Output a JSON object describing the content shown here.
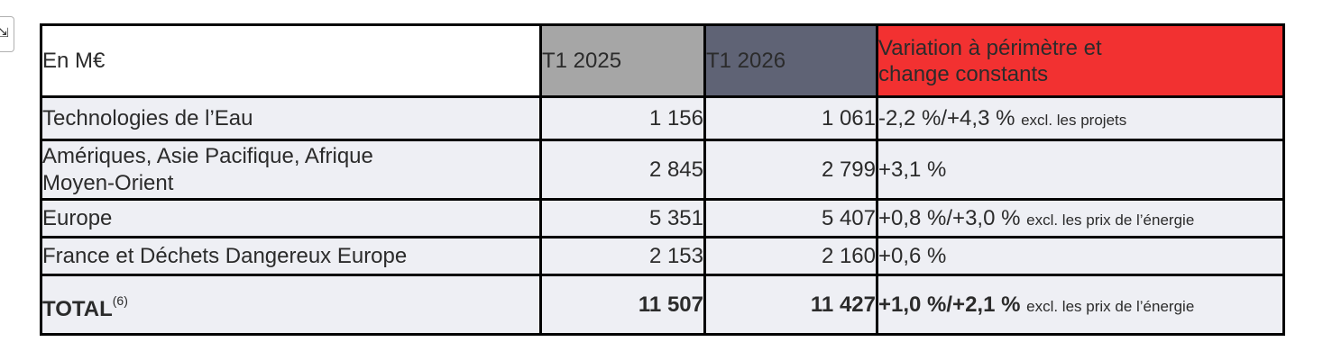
{
  "header": {
    "label": "En M€",
    "col_2025": "T1 2025",
    "col_2026": "T1 2026",
    "col_variation_line1": "Variation à périmètre et",
    "col_variation_line2": "change constants"
  },
  "rows": [
    {
      "label": "Technologies de l’Eau",
      "t1_2025": "1 156",
      "t1_2026": "1 061",
      "variation": "-2,2 %/+4,3 %",
      "variation_note": "excl. les projets"
    },
    {
      "label_line1": "Amériques, Asie Pacifique, Afrique",
      "label_line2": "Moyen-Orient",
      "t1_2025": "2 845",
      "t1_2026": "2 799",
      "variation": "+3,1 %"
    },
    {
      "label": "Europe",
      "t1_2025": "5 351",
      "t1_2026": "5 407",
      "variation": "+0,8 %/+3,0 %",
      "variation_note": "excl. les prix de l’énergie"
    },
    {
      "label": "France et Déchets Dangereux Europe",
      "t1_2025": "2 153",
      "t1_2026": "2 160",
      "variation": "+0,6 %"
    }
  ],
  "total": {
    "label": "TOTAL",
    "footnote": "(6)",
    "t1_2025": "11 507",
    "t1_2026": "11 427",
    "variation": "+1,0 %/+2,1 %",
    "variation_note": "excl. les prix de l’énergie"
  },
  "colors": {
    "header_2025": "#a6a6a6",
    "header_2026": "#5f6375",
    "header_variation": "#f23131",
    "row_background": "#eeeff4"
  }
}
